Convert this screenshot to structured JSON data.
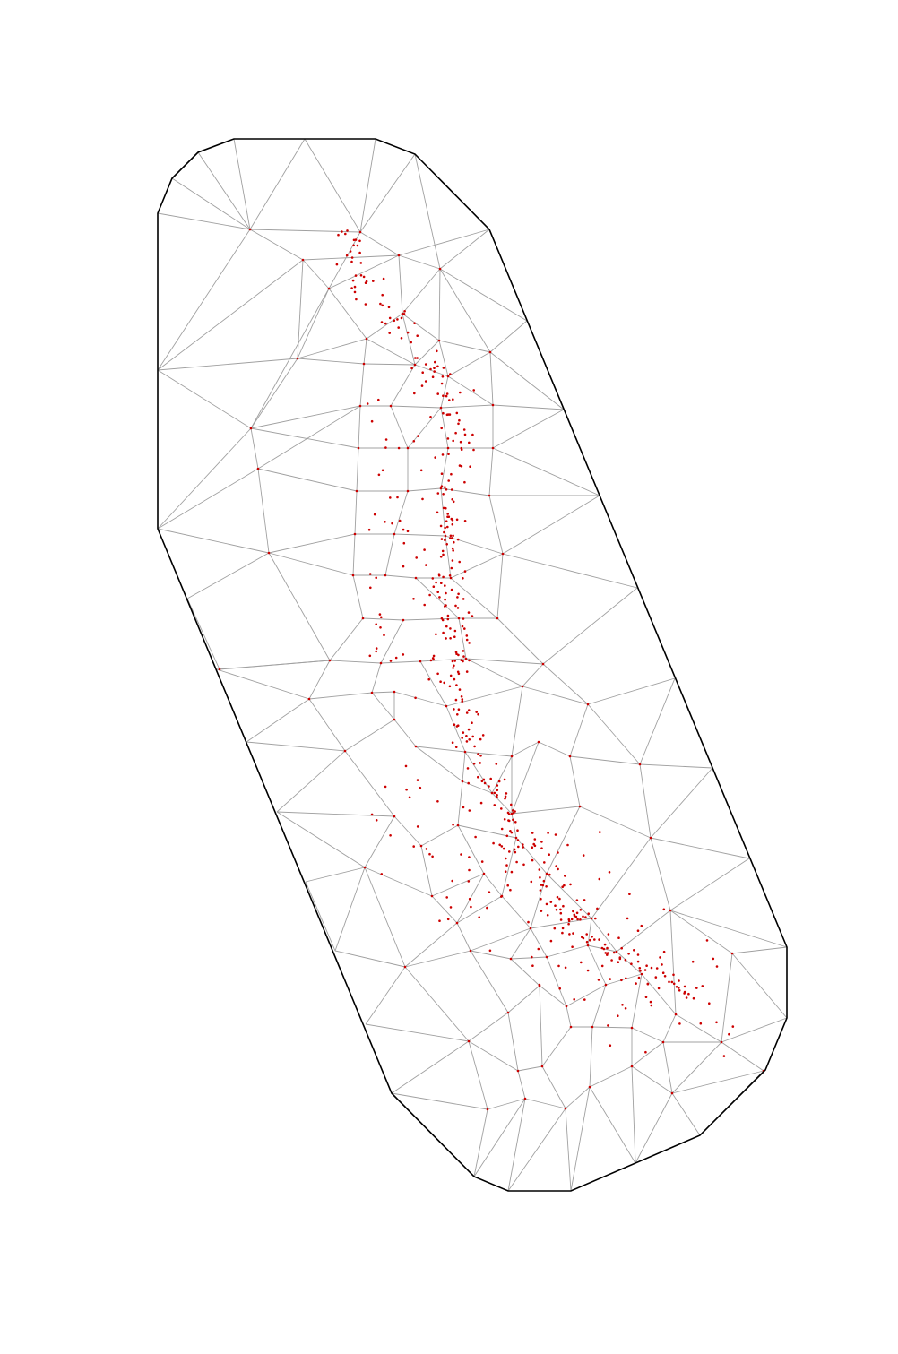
{
  "figure": {
    "kind": "triangular-mesh",
    "colors": {
      "boundary": "#000000",
      "mesh_edges": "#a0a0a0",
      "observation_points": "#cc0000",
      "background": "#ffffff"
    }
  }
}
